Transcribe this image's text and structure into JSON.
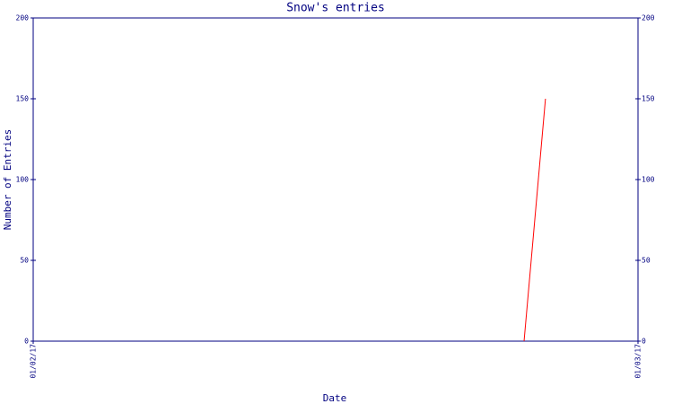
{
  "chart_data": {
    "type": "line",
    "title": "Snow's entries",
    "x_label": "Date",
    "y_label": "Number of Entries",
    "x": [
      0.8116,
      0.847
    ],
    "xlim": [
      0,
      1
    ],
    "xticks": [
      {
        "value": 0,
        "label": "01/02/17"
      },
      {
        "value": 1,
        "label": "01/03/17"
      }
    ],
    "series": [
      {
        "name": "Snow",
        "color": "#ff0000",
        "values": [
          0,
          150
        ]
      }
    ],
    "ylim": [
      0,
      200
    ],
    "yticks": [
      0,
      50,
      100,
      150,
      200
    ],
    "y2lim": [
      0,
      200
    ],
    "y2ticks": [
      0,
      50,
      100,
      150,
      200
    ],
    "grid": false,
    "axis_color": "#000080"
  }
}
